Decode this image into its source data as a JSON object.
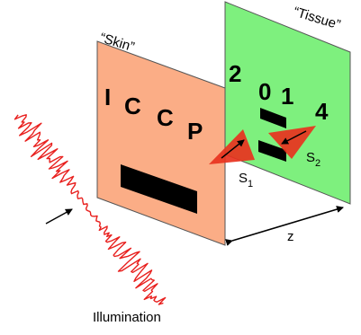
{
  "labels": {
    "skin": "“Skin”",
    "tissue": "“Tissue”",
    "illumination": "Illumination",
    "z": "z",
    "s1_main": "S",
    "s1_sub": "1",
    "s2_main": "S",
    "s2_sub": "2"
  },
  "skin_letters": [
    "I",
    "C",
    "C",
    "P"
  ],
  "tissue_digits": [
    "2",
    "0",
    "1",
    "4"
  ],
  "colors": {
    "skin_panel": "#FBAD86",
    "tissue_panel": "#7EF07E",
    "wave": "#E8201E",
    "triangle": "#E8321E",
    "bar": "#000000"
  }
}
